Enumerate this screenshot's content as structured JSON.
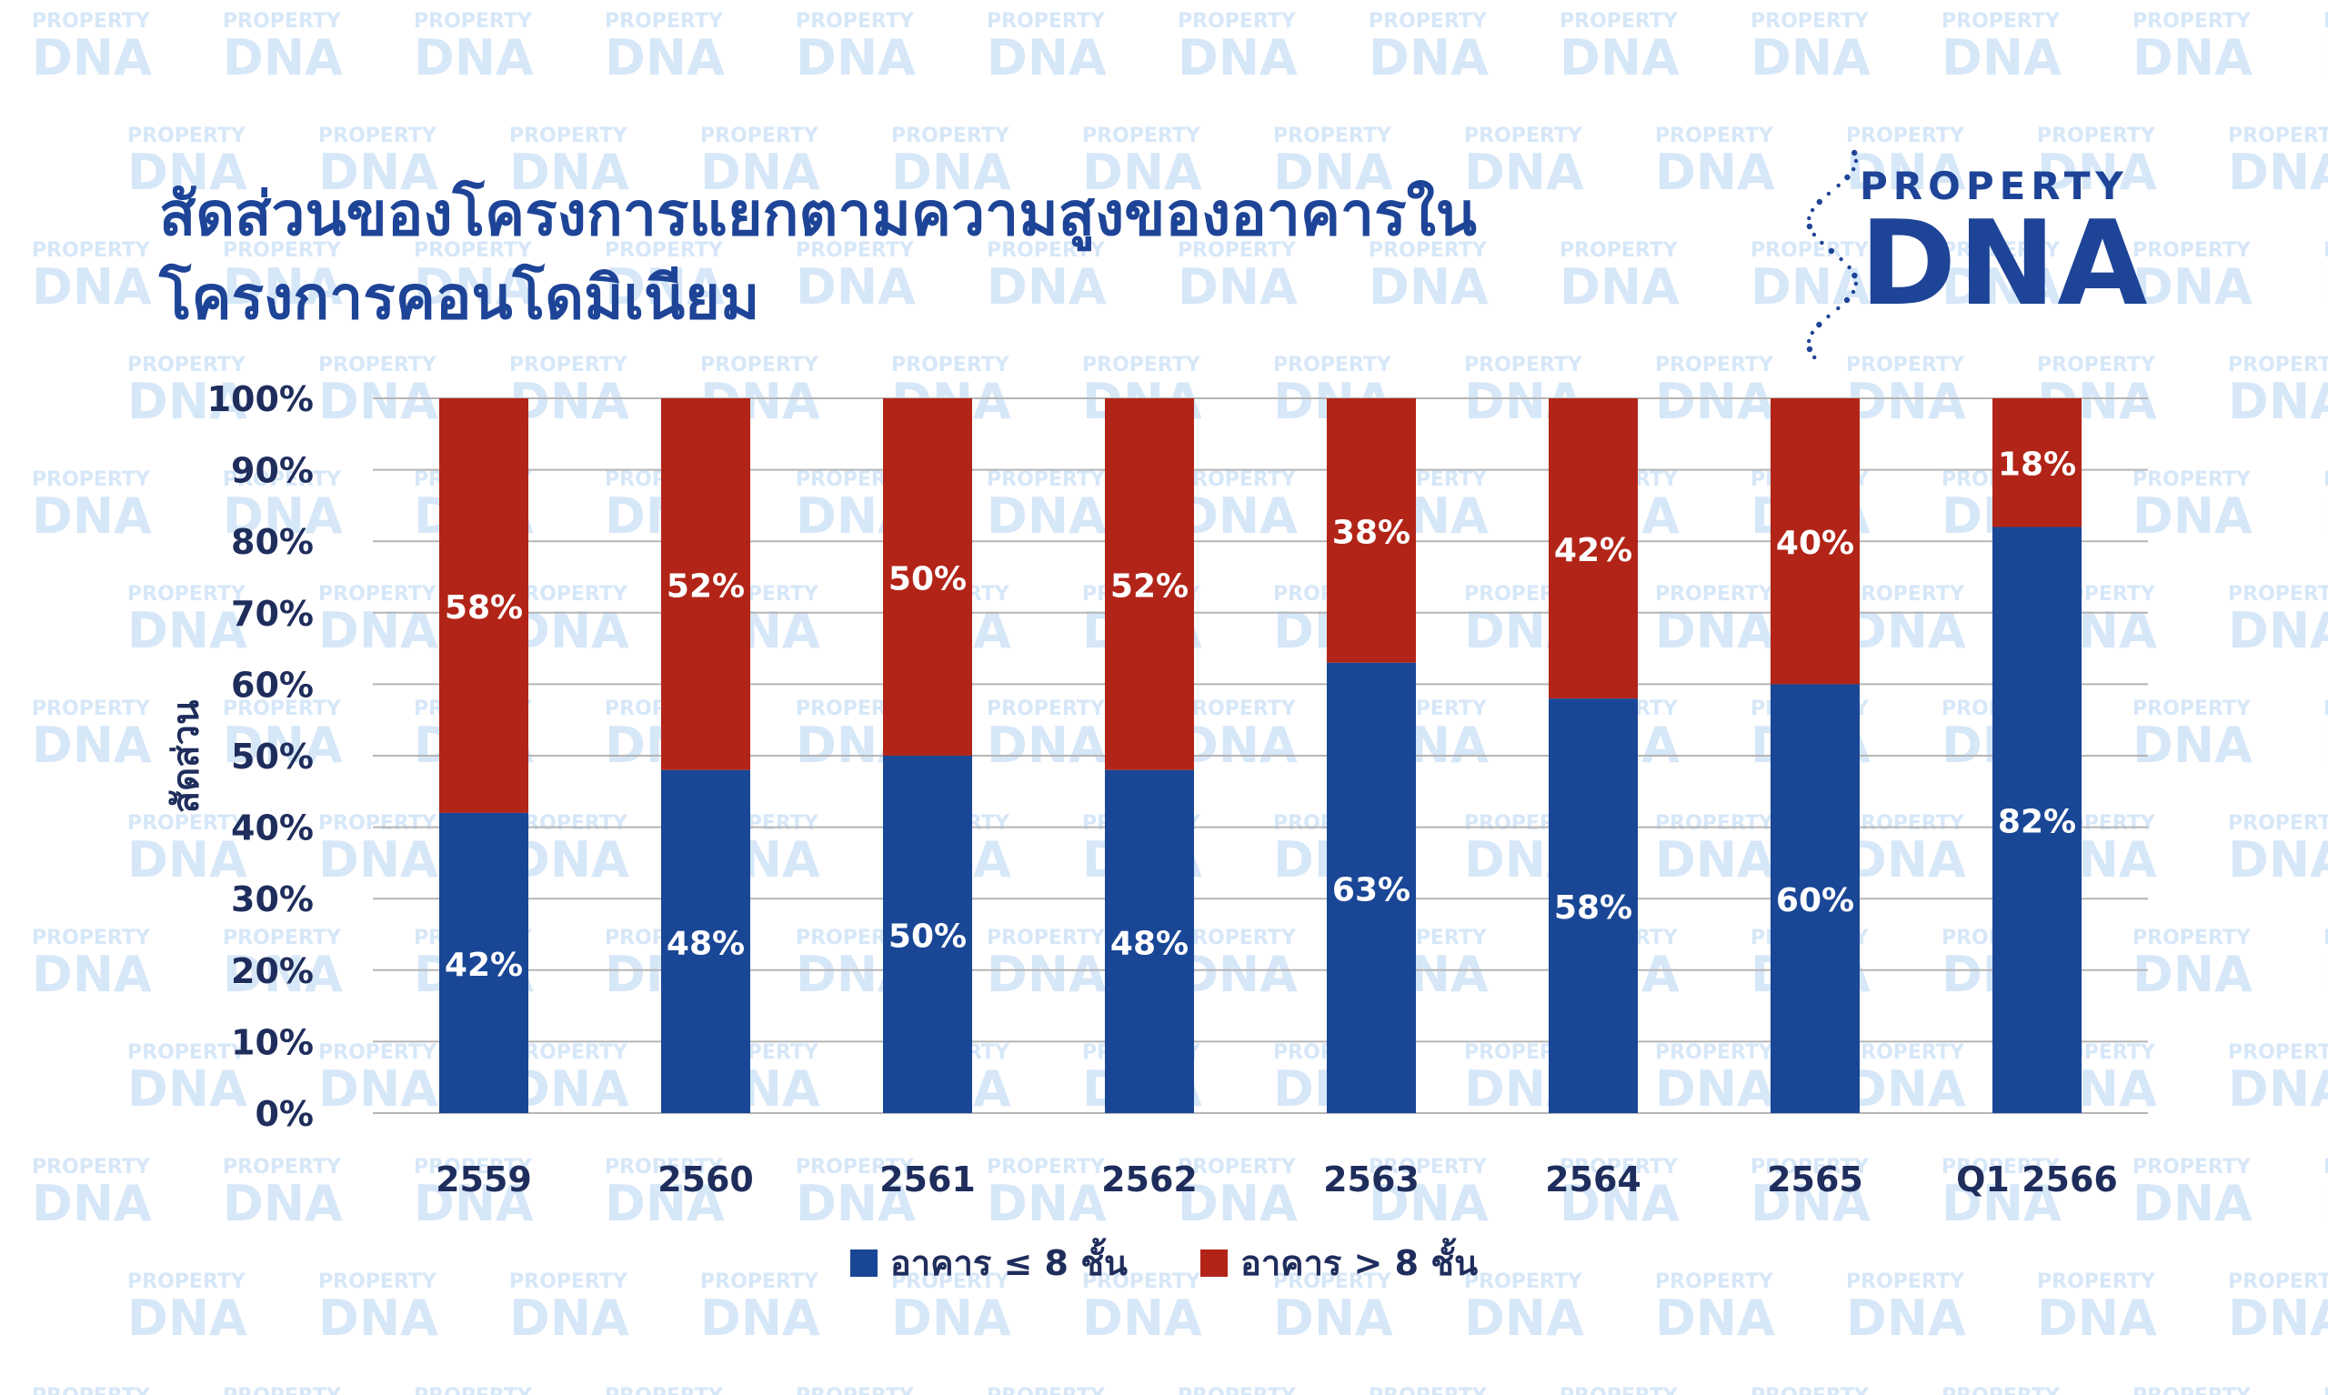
{
  "title": {
    "line1": "สัดส่วนของโครงการแยกตามความสูงของอาคารใน",
    "line2": "โครงการคอนโดมิเนียม"
  },
  "logo": {
    "word1": "PROPERTY",
    "word2": "DNA"
  },
  "watermark": {
    "line1": "PROPERTY",
    "line2": "DNA"
  },
  "colors": {
    "low": "#1a4696",
    "high": "#b22418",
    "title": "#1e4497",
    "axis_text": "#1f2d5c",
    "grid": "#b5b5b5",
    "watermark": "#d6e7f8"
  },
  "chart_data": {
    "type": "bar",
    "stacked": true,
    "title": "สัดส่วนของโครงการแยกตามความสูงของอาคารในโครงการคอนโดมิเนียม",
    "xlabel": "",
    "ylabel": "สัดส่วน",
    "ylim": [
      0,
      100
    ],
    "yticks": [
      "0%",
      "10%",
      "20%",
      "30%",
      "40%",
      "50%",
      "60%",
      "70%",
      "80%",
      "90%",
      "100%"
    ],
    "categories": [
      "2559",
      "2560",
      "2561",
      "2562",
      "2563",
      "2564",
      "2565",
      "Q1 2566"
    ],
    "series": [
      {
        "name": "อาคาร ≤ 8 ชั้น",
        "values": [
          42,
          48,
          50,
          48,
          63,
          58,
          60,
          82
        ],
        "labels": [
          "42%",
          "48%",
          "50%",
          "48%",
          "63%",
          "58%",
          "60%",
          "82%"
        ]
      },
      {
        "name": "อาคาร > 8 ชั้น",
        "values": [
          58,
          52,
          50,
          52,
          38,
          42,
          40,
          18
        ],
        "labels": [
          "58%",
          "52%",
          "50%",
          "52%",
          "38%",
          "42%",
          "40%",
          "18%"
        ]
      }
    ],
    "grid": true,
    "legend": "bottom-center"
  }
}
